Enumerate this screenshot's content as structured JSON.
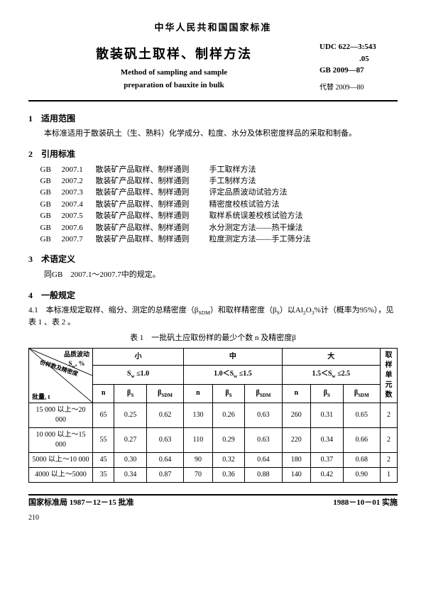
{
  "header": {
    "country_std": "中华人民共和国国家标准",
    "title_cn": "散装矾土取样、制样方法",
    "title_en1": "Method of sampling and sample",
    "title_en2": "preparation of bauxite in bulk",
    "udc_line1": "UDC 622—3:543",
    "udc_line2": ".05",
    "gb": "GB 2009—87",
    "replace": "代替 2009—80"
  },
  "sec1": {
    "head": "1　适用范围",
    "body": "本标准适用于散装矾土（生、熟料）化学成分、粒度、水分及体积密度样品的采取和制备。"
  },
  "sec2": {
    "head": "2　引用标准",
    "refs": [
      {
        "a": "GB",
        "b": "2007.1",
        "c": "散装矿产品取样、制样通则",
        "d": "手工取样方法"
      },
      {
        "a": "GB",
        "b": "2007.2",
        "c": "散装矿产品取样、制样通则",
        "d": "手工制样方法"
      },
      {
        "a": "GB",
        "b": "2007.3",
        "c": "散装矿产品取样、制样通则",
        "d": "评定品质波动试验方法"
      },
      {
        "a": "GB",
        "b": "2007.4",
        "c": "散装矿产品取样、制样通则",
        "d": "精密度校核试验方法"
      },
      {
        "a": "GB",
        "b": "2007.5",
        "c": "散装矿产品取样、制样通则",
        "d": "取样系统误差校核试验方法"
      },
      {
        "a": "GB",
        "b": "2007.6",
        "c": "散装矿产品取样、制样通则",
        "d": "水分测定方法——热干燥法"
      },
      {
        "a": "GB",
        "b": "2007.7",
        "c": "散装矿产品取样、制样通则",
        "d": "粒度测定方法——手工筛分法"
      }
    ]
  },
  "sec3": {
    "head": "3　术语定义",
    "body": "同GB　2007.1～2007.7中的规定。"
  },
  "sec4": {
    "head": "4　一般规定",
    "p41": "4.1　本标准规定取样、缩分、测定的总精密度（βSDM）和取样精密度（βS）以Al₂O₃%计（概率为95%），见表 1 、表 2 。"
  },
  "table1": {
    "caption": "表 1　一批矾土应取份样的最少个数 n 及精密度β",
    "diag_top": "品质波动\nSw, %",
    "diag_mid": "份样数及精密度",
    "diag_bot": "批量, t",
    "size_small": "小",
    "size_mid": "中",
    "size_large": "大",
    "unit_col": "取样单元数",
    "range_small": "Sw ≤1.0",
    "range_mid": "1.0＜Sw ≤1.5",
    "range_large": "1.5＜Sw ≤2.5",
    "sub_n": "n",
    "sub_bs": "βS",
    "sub_bsdm": "βSDM",
    "rows": [
      {
        "label": "15 000 以上～20 000",
        "v": [
          "65",
          "0.25",
          "0.62",
          "130",
          "0.26",
          "0.63",
          "260",
          "0.31",
          "0.65"
        ],
        "u": "2"
      },
      {
        "label": "10 000 以上～15 000",
        "v": [
          "55",
          "0.27",
          "0.63",
          "110",
          "0.29",
          "0.63",
          "220",
          "0.34",
          "0.66"
        ],
        "u": "2"
      },
      {
        "label": "5000 以上～10 000",
        "v": [
          "45",
          "0.30",
          "0.64",
          "90",
          "0.32",
          "0.64",
          "180",
          "0.37",
          "0.68"
        ],
        "u": "2"
      },
      {
        "label": "4000 以上～5000",
        "v": [
          "35",
          "0.34",
          "0.87",
          "70",
          "0.36",
          "0.88",
          "140",
          "0.42",
          "0.90"
        ],
        "u": "1"
      }
    ]
  },
  "footer": {
    "left": "国家标准局 1987－12－15 批准",
    "right": "1988－10－01 实施",
    "page": "210"
  }
}
